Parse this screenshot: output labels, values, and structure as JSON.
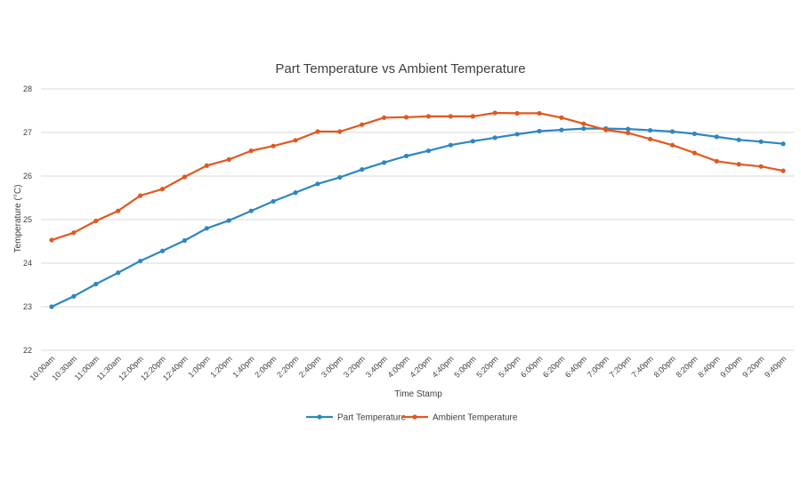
{
  "chart_data": {
    "type": "line",
    "title": "Part Temperature vs Ambient Temperature",
    "xlabel": "Time Stamp",
    "ylabel": "Temperature (°C)",
    "ylim": [
      22,
      28
    ],
    "yticks": [
      22,
      23,
      24,
      25,
      26,
      27,
      28
    ],
    "grid": true,
    "legend_position": "bottom",
    "categories": [
      "10:00am",
      "10:30am",
      "11:00am",
      "11:30am",
      "12:00pm",
      "12:20pm",
      "12:40pm",
      "1:00pm",
      "1:20pm",
      "1:40pm",
      "2:00pm",
      "2:20pm",
      "2:40pm",
      "3:00pm",
      "3:20pm",
      "3:40pm",
      "4:00pm",
      "4:20pm",
      "4:40pm",
      "5:00pm",
      "5:20pm",
      "5:40pm",
      "6:00pm",
      "6:20pm",
      "6:40pm",
      "7:00pm",
      "7:20pm",
      "7:40pm",
      "8:00pm",
      "8:20pm",
      "8:40pm",
      "9:00pm",
      "9:20pm",
      "9:40pm"
    ],
    "series": [
      {
        "name": "Part Temperature",
        "color": "#2E86C1",
        "values": [
          23.0,
          23.24,
          23.52,
          23.78,
          24.05,
          24.28,
          24.52,
          24.8,
          24.98,
          25.2,
          25.42,
          25.62,
          25.82,
          25.97,
          26.15,
          26.31,
          26.46,
          26.58,
          26.71,
          26.8,
          26.88,
          26.96,
          27.03,
          27.06,
          27.09,
          27.09,
          27.08,
          27.05,
          27.02,
          26.97,
          26.9,
          26.83,
          26.79,
          26.74
        ]
      },
      {
        "name": "Ambient Temperature",
        "color": "#E2571E",
        "values": [
          24.53,
          24.7,
          24.97,
          25.2,
          25.55,
          25.7,
          25.98,
          26.24,
          26.38,
          26.58,
          26.69,
          26.82,
          27.02,
          27.02,
          27.18,
          27.34,
          27.35,
          27.37,
          27.37,
          27.37,
          27.45,
          27.44,
          27.44,
          27.34,
          27.2,
          27.06,
          26.99,
          26.85,
          26.71,
          26.53,
          26.34,
          26.27,
          26.22,
          26.12
        ]
      }
    ]
  }
}
